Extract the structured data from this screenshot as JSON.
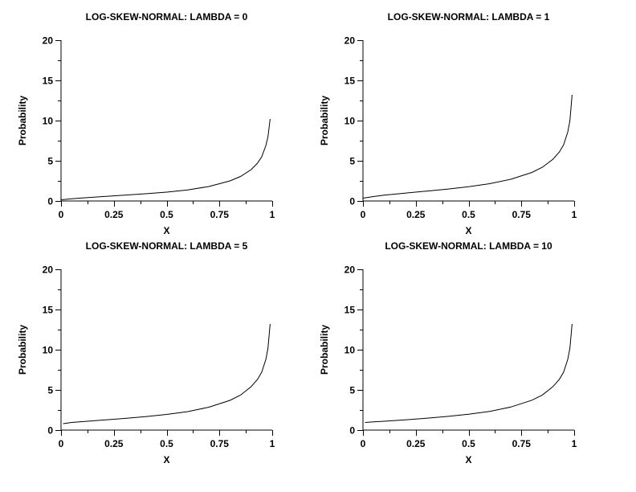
{
  "chart_data": [
    {
      "type": "line",
      "title": "LOG-SKEW-NORMAL: LAMBDA = 0",
      "xlabel": "X",
      "ylabel": "Probability",
      "xlim": [
        0,
        1
      ],
      "ylim": [
        0,
        20
      ],
      "xticks": [
        "0",
        "0.25",
        "0.5",
        "0.75",
        "1"
      ],
      "yticks": [
        "0",
        "5",
        "10",
        "15",
        "20"
      ],
      "grid": false,
      "x": [
        0.0,
        0.05,
        0.1,
        0.2,
        0.3,
        0.4,
        0.5,
        0.6,
        0.7,
        0.8,
        0.85,
        0.9,
        0.93,
        0.95,
        0.97,
        0.98,
        0.99
      ],
      "y": [
        0.15,
        0.28,
        0.38,
        0.55,
        0.72,
        0.9,
        1.1,
        1.38,
        1.8,
        2.5,
        3.05,
        3.9,
        4.7,
        5.5,
        6.9,
        8.0,
        10.2
      ]
    },
    {
      "type": "line",
      "title": "LOG-SKEW-NORMAL: LAMBDA = 1",
      "xlabel": "X",
      "ylabel": "Probability",
      "xlim": [
        0,
        1
      ],
      "ylim": [
        0,
        20
      ],
      "xticks": [
        "0",
        "0.25",
        "0.5",
        "0.75",
        "1"
      ],
      "yticks": [
        "0",
        "5",
        "10",
        "15",
        "20"
      ],
      "grid": false,
      "x": [
        0.0,
        0.05,
        0.1,
        0.2,
        0.3,
        0.4,
        0.5,
        0.6,
        0.7,
        0.8,
        0.85,
        0.9,
        0.93,
        0.95,
        0.97,
        0.98,
        0.99
      ],
      "y": [
        0.35,
        0.55,
        0.72,
        0.98,
        1.22,
        1.48,
        1.78,
        2.15,
        2.7,
        3.55,
        4.2,
        5.2,
        6.1,
        7.0,
        8.6,
        10.0,
        13.2
      ]
    },
    {
      "type": "line",
      "title": "LOG-SKEW-NORMAL: LAMBDA = 5",
      "xlabel": "X",
      "ylabel": "Probability",
      "xlim": [
        0,
        1
      ],
      "ylim": [
        0,
        20
      ],
      "xticks": [
        "0",
        "0.25",
        "0.5",
        "0.75",
        "1"
      ],
      "yticks": [
        "0",
        "5",
        "10",
        "15",
        "20"
      ],
      "grid": false,
      "x": [
        0.01,
        0.05,
        0.1,
        0.2,
        0.3,
        0.4,
        0.5,
        0.6,
        0.7,
        0.8,
        0.85,
        0.9,
        0.93,
        0.95,
        0.97,
        0.98,
        0.99
      ],
      "y": [
        0.8,
        0.95,
        1.05,
        1.25,
        1.45,
        1.68,
        1.95,
        2.3,
        2.85,
        3.7,
        4.35,
        5.4,
        6.3,
        7.2,
        8.8,
        10.2,
        13.2
      ]
    },
    {
      "type": "line",
      "title": "LOG-SKEW-NORMAL: LAMBDA = 10",
      "xlabel": "X",
      "ylabel": "Probability",
      "xlim": [
        0,
        1
      ],
      "ylim": [
        0,
        20
      ],
      "xticks": [
        "0",
        "0.25",
        "0.5",
        "0.75",
        "1"
      ],
      "yticks": [
        "0",
        "5",
        "10",
        "15",
        "20"
      ],
      "grid": false,
      "x": [
        0.01,
        0.05,
        0.1,
        0.2,
        0.3,
        0.4,
        0.5,
        0.6,
        0.7,
        0.8,
        0.85,
        0.9,
        0.93,
        0.95,
        0.97,
        0.98,
        0.99
      ],
      "y": [
        0.95,
        1.02,
        1.1,
        1.28,
        1.47,
        1.7,
        1.97,
        2.32,
        2.87,
        3.72,
        4.37,
        5.42,
        6.32,
        7.22,
        8.82,
        10.2,
        13.2
      ]
    }
  ]
}
